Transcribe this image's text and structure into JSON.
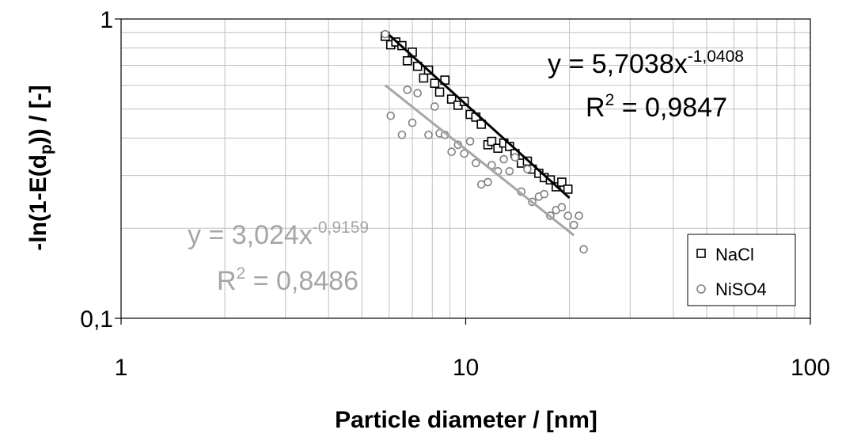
{
  "chart_data": {
    "type": "scatter",
    "title": "",
    "xlabel": "Particle diameter / [nm]",
    "ylabel_main": "-ln(1-E(d",
    "ylabel_sub": "p",
    "ylabel_tail": ")) / [-]",
    "x_scale": "log",
    "y_scale": "log",
    "xlim": [
      1,
      100
    ],
    "ylim": [
      0.1,
      1
    ],
    "x_ticks": [
      1,
      10,
      100
    ],
    "x_tick_labels": [
      "1",
      "10",
      "100"
    ],
    "y_ticks": [
      0.1,
      1
    ],
    "y_tick_labels": [
      "0,1",
      "1"
    ],
    "grid": true,
    "legend": {
      "position": "bottom-right",
      "entries": [
        "NaCl",
        "NiSO4"
      ]
    },
    "colors": {
      "NaCl_marker": "#000000",
      "NaCl_trend": "#000000",
      "NiSO4_marker": "#808080",
      "NiSO4_trend": "#a6a6a6",
      "grid": "#bfbfbf",
      "NiSO4_eq": "#a6a6a6"
    },
    "series": [
      {
        "name": "NaCl",
        "marker": "square",
        "points": [
          [
            5.84,
            0.875
          ],
          [
            6.06,
            0.82
          ],
          [
            6.27,
            0.838
          ],
          [
            6.53,
            0.815
          ],
          [
            6.77,
            0.725
          ],
          [
            7.0,
            0.775
          ],
          [
            7.25,
            0.695
          ],
          [
            7.55,
            0.635
          ],
          [
            7.8,
            0.675
          ],
          [
            8.13,
            0.61
          ],
          [
            8.4,
            0.57
          ],
          [
            8.7,
            0.625
          ],
          [
            9.1,
            0.54
          ],
          [
            9.5,
            0.515
          ],
          [
            9.9,
            0.53
          ],
          [
            10.3,
            0.48
          ],
          [
            10.7,
            0.47
          ],
          [
            11.1,
            0.445
          ],
          [
            11.6,
            0.38
          ],
          [
            11.9,
            0.39
          ],
          [
            12.4,
            0.37
          ],
          [
            12.9,
            0.385
          ],
          [
            13.4,
            0.375
          ],
          [
            13.9,
            0.355
          ],
          [
            14.5,
            0.33
          ],
          [
            15.1,
            0.335
          ],
          [
            15.6,
            0.315
          ],
          [
            16.3,
            0.305
          ],
          [
            16.9,
            0.295
          ],
          [
            17.6,
            0.29
          ],
          [
            18.3,
            0.275
          ],
          [
            19.0,
            0.285
          ],
          [
            19.8,
            0.27
          ]
        ],
        "trendline": {
          "equation": "y = 5,7038x",
          "exponent": "-1,0408",
          "r2_label": "R",
          "r2_sup": "2",
          "r2_value": " = 0,9847",
          "coef": 5.7038,
          "power": -1.0408,
          "x_range": [
            5.84,
            20.0
          ]
        }
      },
      {
        "name": "NiSO4",
        "marker": "circle",
        "points": [
          [
            5.84,
            0.89
          ],
          [
            6.06,
            0.475
          ],
          [
            6.53,
            0.41
          ],
          [
            6.77,
            0.58
          ],
          [
            7.0,
            0.45
          ],
          [
            7.25,
            0.565
          ],
          [
            7.8,
            0.41
          ],
          [
            8.13,
            0.51
          ],
          [
            8.4,
            0.415
          ],
          [
            8.7,
            0.41
          ],
          [
            9.1,
            0.36
          ],
          [
            9.5,
            0.38
          ],
          [
            9.9,
            0.355
          ],
          [
            10.3,
            0.39
          ],
          [
            10.7,
            0.33
          ],
          [
            11.1,
            0.28
          ],
          [
            11.6,
            0.285
          ],
          [
            11.9,
            0.325
          ],
          [
            12.4,
            0.31
          ],
          [
            12.9,
            0.34
          ],
          [
            13.4,
            0.31
          ],
          [
            13.9,
            0.345
          ],
          [
            14.5,
            0.265
          ],
          [
            15.1,
            0.315
          ],
          [
            15.6,
            0.245
          ],
          [
            16.3,
            0.255
          ],
          [
            16.9,
            0.26
          ],
          [
            17.6,
            0.22
          ],
          [
            18.3,
            0.23
          ],
          [
            19.0,
            0.235
          ],
          [
            19.8,
            0.22
          ],
          [
            20.6,
            0.205
          ],
          [
            21.3,
            0.22
          ],
          [
            22.0,
            0.17
          ]
        ],
        "trendline": {
          "equation": "y = 3,024x",
          "exponent": "-0,9159",
          "r2_label": "R",
          "r2_sup": "2",
          "r2_value": " = 0,8486",
          "coef": 3.024,
          "power": -0.9159,
          "x_range": [
            5.84,
            20.6
          ]
        }
      }
    ]
  }
}
